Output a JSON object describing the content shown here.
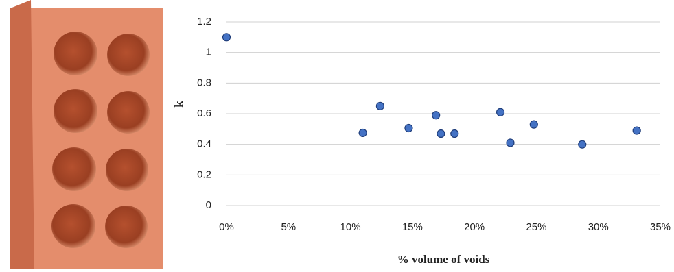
{
  "chart_data": {
    "type": "scatter",
    "x_label": "% volume of voids",
    "y_label": "k",
    "x": [
      0,
      11.0,
      12.4,
      14.7,
      16.9,
      17.3,
      18.4,
      22.1,
      22.9,
      24.8,
      28.7,
      33.1
    ],
    "values": [
      1.1,
      0.475,
      0.65,
      0.506,
      0.59,
      0.47,
      0.47,
      0.61,
      0.41,
      0.53,
      0.4,
      0.49
    ],
    "color": "#4472c4",
    "xlim": [
      0,
      35
    ],
    "xticks": [
      {
        "value": 0,
        "label": "0%"
      },
      {
        "value": 5,
        "label": "5%"
      },
      {
        "value": 10,
        "label": "10%"
      },
      {
        "value": 15,
        "label": "15%"
      },
      {
        "value": 20,
        "label": "20%"
      },
      {
        "value": 25,
        "label": "25%"
      },
      {
        "value": 30,
        "label": "30%"
      },
      {
        "value": 35,
        "label": "35%"
      }
    ],
    "ylim": [
      0,
      1.2
    ],
    "yticks": [
      0,
      0.2,
      0.4,
      0.6,
      0.8,
      1,
      1.2
    ],
    "grid": true
  }
}
